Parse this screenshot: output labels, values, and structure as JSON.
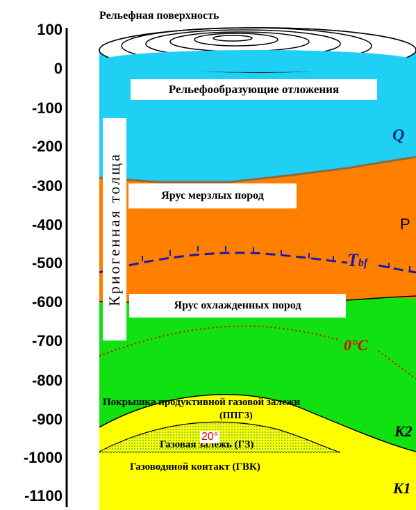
{
  "title": "Рельефная поверхность",
  "depth_axis": {
    "ticks": [
      "100",
      "0",
      "-100",
      "-200",
      "-300",
      "-400",
      "-500",
      "-600",
      "-700",
      "-800",
      "-900",
      "-1000",
      "-1100"
    ]
  },
  "layers": {
    "relief_deposits": "Рельефообразующие отложения",
    "frozen_tier": "Ярус мерзлых пород",
    "cooled_tier": "Ярус охлажденных пород",
    "cap_rock_line1": "Покрышка продуктивной газовой залежи",
    "cap_rock_line2": "(ППГЗ)",
    "gas_deposit": "Газовая залежь (ГЗ)",
    "gas_water_contact": "Газоводяной контакт (ГВК)"
  },
  "vertical_label": "Криогенная толща",
  "markers": {
    "q": "Q",
    "p": "P",
    "tbf_t": "T",
    "tbf_sub": "bf",
    "zero_c": "0°C",
    "k2": "K2",
    "k1": "K1",
    "temp": "20°"
  },
  "colors": {
    "sky": "#1fd0f4",
    "frozen": "#ff8000",
    "cooled": "#11e011",
    "gas": "#ffff00",
    "gas_dots": "#5fb85f",
    "tbf_line": "#1a1aa6",
    "zero_line": "#e00000"
  }
}
